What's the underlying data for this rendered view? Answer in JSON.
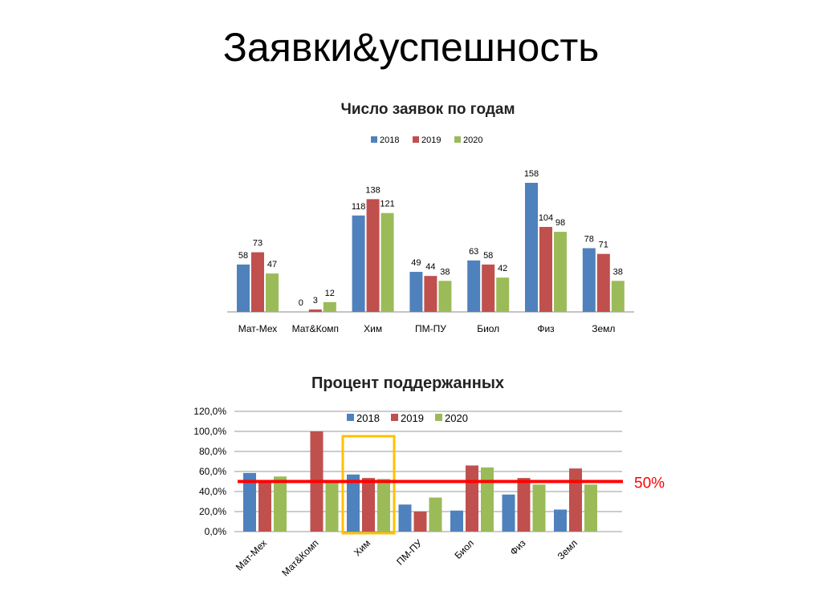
{
  "slide_title": "Заявки&успешность",
  "colors": {
    "2018": "#4F81BD",
    "2019": "#C0504D",
    "2020": "#9BBB59",
    "threshold": "#FF0000",
    "highlight": "#FFC000"
  },
  "chart_data": [
    {
      "type": "bar",
      "title": "Число заявок по годам",
      "categories": [
        "Мат-Мех",
        "Мат&Комп",
        "Хим",
        "ПМ-ПУ",
        "Биол",
        "Физ",
        "Земл"
      ],
      "series": [
        {
          "name": "2018",
          "values": [
            58,
            0,
            118,
            49,
            63,
            158,
            78
          ]
        },
        {
          "name": "2019",
          "values": [
            73,
            3,
            138,
            44,
            58,
            104,
            71
          ]
        },
        {
          "name": "2020",
          "values": [
            47,
            12,
            121,
            38,
            42,
            98,
            38
          ]
        }
      ],
      "legend": "top",
      "data_labels": true,
      "ylim": [
        0,
        160
      ]
    },
    {
      "type": "bar",
      "title": "Процент поддержанных",
      "categories": [
        "Мат-Мех",
        "Мат&Комп",
        "Хим",
        "ПМ-ПУ",
        "Биол",
        "Физ",
        "Земл"
      ],
      "series": [
        {
          "name": "2018",
          "values": [
            58.5,
            0,
            57,
            27,
            21,
            37,
            22
          ]
        },
        {
          "name": "2019",
          "values": [
            50,
            100,
            53.5,
            20,
            66,
            53.5,
            63
          ]
        },
        {
          "name": "2020",
          "values": [
            55,
            50,
            52.5,
            34,
            64,
            47,
            47
          ]
        }
      ],
      "yticks": [
        "0,0%",
        "20,0%",
        "40,0%",
        "60,0%",
        "80,0%",
        "100,0%",
        "120,0%"
      ],
      "ylim": [
        0,
        120
      ],
      "grid": true,
      "legend": "top",
      "threshold": {
        "value": 50,
        "label": "50%"
      },
      "highlighted_category": "Хим"
    }
  ]
}
